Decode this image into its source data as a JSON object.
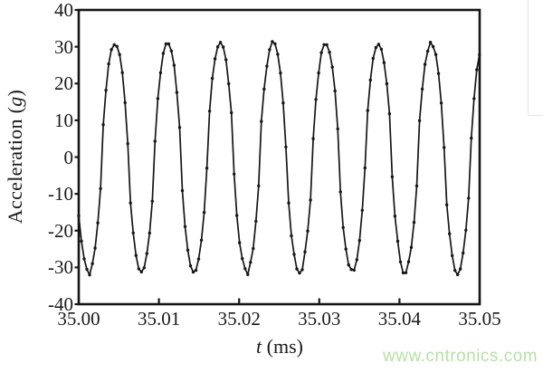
{
  "chart_data": {
    "type": "line",
    "title": "",
    "xlabel": "t (ms)",
    "ylabel": "Acceleration (g)",
    "xlim": [
      35.0,
      35.05
    ],
    "ylim": [
      -40,
      40
    ],
    "x_ticks": [
      "35.00",
      "35.01",
      "35.02",
      "35.03",
      "35.04",
      "35.05"
    ],
    "y_ticks": [
      "40",
      "30",
      "20",
      "10",
      "0",
      "-10",
      "-20",
      "-30",
      "-40"
    ],
    "grid": false,
    "legend": false,
    "series": [
      {
        "name": "acceleration-waveform",
        "color": "#161616",
        "marker": "dot",
        "cycles_visible": 7.4,
        "model": {
          "shape": "flattened-sinusoid",
          "amplitude_g": 31,
          "offset_g": 0,
          "period_ms": 0.00657,
          "first_minimum_t_ms": 35.00124,
          "flatten_exponent": 0.7,
          "noise_g": 0.45,
          "sample_step_ms": 0.00034
        },
        "approx_peak_g": 31,
        "approx_trough_g": -31.5,
        "value_at_left_edge_g": -20
      }
    ]
  },
  "labels": {
    "ylabel_prefix": "Acceleration (",
    "ylabel_italic": "g",
    "ylabel_suffix": ")",
    "xlabel_italic": "t",
    "xlabel_suffix": " (ms)"
  },
  "watermark": {
    "text": "www.cntronics.com",
    "color": "#b7dfa6"
  },
  "style": {
    "axis_color": "#161616",
    "label_color": "#1a1a1a",
    "background": "#ffffff"
  }
}
